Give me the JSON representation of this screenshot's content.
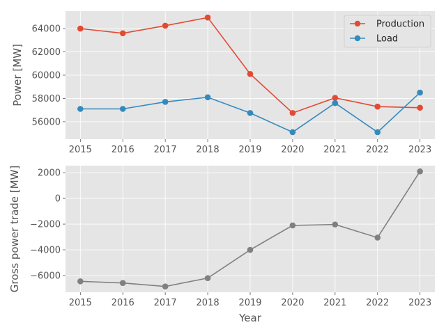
{
  "chart_data": [
    {
      "type": "line",
      "title": "",
      "xlabel": "",
      "ylabel": "Power [MW]",
      "x": [
        2015,
        2016,
        2017,
        2018,
        2019,
        2020,
        2021,
        2022,
        2023
      ],
      "xticks": [
        "2015",
        "2016",
        "2017",
        "2018",
        "2019",
        "2020",
        "2021",
        "2022",
        "2023"
      ],
      "ylim": [
        54500,
        65500
      ],
      "yticks": [
        56000,
        58000,
        60000,
        62000,
        64000
      ],
      "ytick_labels": [
        "56000",
        "58000",
        "60000",
        "62000",
        "64000"
      ],
      "grid": true,
      "legend": "top-right",
      "series": [
        {
          "name": "Production",
          "color": "#E24A33",
          "values": [
            64000,
            63600,
            64250,
            64950,
            60100,
            56750,
            58050,
            57300,
            57200
          ]
        },
        {
          "name": "Load",
          "color": "#348ABD",
          "values": [
            57100,
            57100,
            57700,
            58100,
            56750,
            55100,
            57600,
            55100,
            58500
          ]
        }
      ]
    },
    {
      "type": "line",
      "title": "",
      "xlabel": "Year",
      "ylabel": "Gross power trade  [MW]",
      "x": [
        2015,
        2016,
        2017,
        2018,
        2019,
        2020,
        2021,
        2022,
        2023
      ],
      "xticks": [
        "2015",
        "2016",
        "2017",
        "2018",
        "2019",
        "2020",
        "2021",
        "2022",
        "2023"
      ],
      "ylim": [
        -7300,
        2550
      ],
      "yticks": [
        -6000,
        -4000,
        -2000,
        0,
        2000
      ],
      "ytick_labels": [
        "−6000",
        "−4000",
        "−2000",
        "0",
        "2000"
      ],
      "grid": true,
      "series": [
        {
          "color": "#808080",
          "values": [
            -6450,
            -6580,
            -6850,
            -6200,
            -4000,
            -2100,
            -2030,
            -3050,
            2100
          ]
        }
      ]
    }
  ]
}
